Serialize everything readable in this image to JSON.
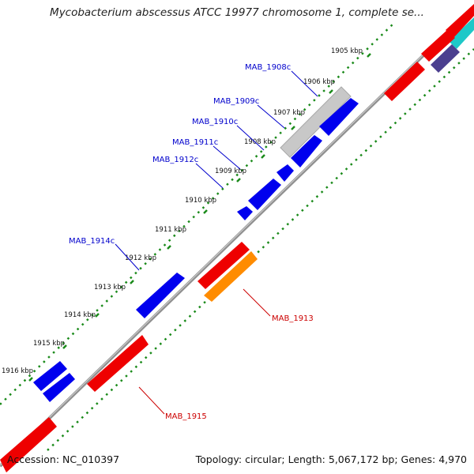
{
  "title": "Mycobacterium abscessus ATCC 19977 chromosome 1, complete se...",
  "footer": {
    "accession": "Accession: NC_010397",
    "stats": "Topology: circular; Length: 5,067,172 bp; Genes: 4,970"
  },
  "colors": {
    "forward_gene": "#0000ee",
    "reverse_gene": "#ee0000",
    "orange_gene": "#ff8c00",
    "gray_gene": "#c8c8c8",
    "cyan_gene": "#1ec8c8",
    "purple_gene": "#4b3f8f",
    "backbone": "#808080",
    "tick": "#1a8a1a",
    "forward_label": "#0000cc",
    "reverse_label": "#cc0000"
  },
  "kbp_labels": [
    "1905 kbp",
    "1906 kbp",
    "1907 kbp",
    "1908 kbp",
    "1909 kbp",
    "1910 kbp",
    "1911 kbp",
    "1912 kbp",
    "1913 kbp",
    "1914 kbp",
    "1915 kbp",
    "1916 kbp"
  ],
  "forward_gene_labels": [
    "MAB_1908c",
    "MAB_1909c",
    "MAB_1910c",
    "MAB_1911c",
    "MAB_1912c",
    "MAB_1914c"
  ],
  "reverse_gene_labels": [
    "MAB_1913",
    "MAB_1915"
  ]
}
